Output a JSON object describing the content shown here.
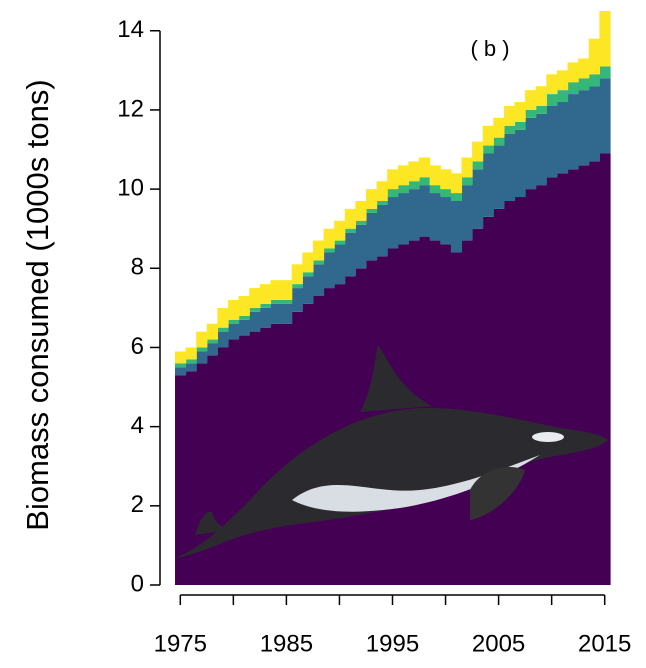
{
  "chart_data": {
    "type": "stacked-step-area",
    "y_label": "Biomass consumed (1000s tons)",
    "annotation": "( b )",
    "x": [
      1975,
      1976,
      1977,
      1978,
      1979,
      1980,
      1981,
      1982,
      1983,
      1984,
      1985,
      1986,
      1987,
      1988,
      1989,
      1990,
      1991,
      1992,
      1993,
      1994,
      1995,
      1996,
      1997,
      1998,
      1999,
      2000,
      2001,
      2002,
      2003,
      2004,
      2005,
      2006,
      2007,
      2008,
      2009,
      2010,
      2011,
      2012,
      2013,
      2014,
      2015
    ],
    "xlim": [
      1974.5,
      2015.5
    ],
    "xticks": [
      1975,
      1985,
      1995,
      2005,
      2015
    ],
    "xminor_ticks": [
      1980,
      1990,
      2000,
      2010
    ],
    "ylim": [
      0,
      14.6
    ],
    "yticks": [
      0,
      2,
      4,
      6,
      8,
      10,
      12,
      14
    ],
    "series": [
      {
        "color": "#440154",
        "values": [
          5.3,
          5.4,
          5.6,
          5.8,
          6.0,
          6.2,
          6.3,
          6.4,
          6.5,
          6.6,
          6.6,
          6.9,
          7.1,
          7.3,
          7.5,
          7.6,
          7.8,
          8.0,
          8.2,
          8.3,
          8.5,
          8.6,
          8.7,
          8.8,
          8.7,
          8.6,
          8.4,
          8.7,
          9.0,
          9.3,
          9.5,
          9.7,
          9.8,
          10.0,
          10.1,
          10.3,
          10.4,
          10.5,
          10.6,
          10.7,
          10.9
        ]
      },
      {
        "color": "#31688e",
        "values": [
          0.2,
          0.2,
          0.3,
          0.3,
          0.4,
          0.4,
          0.4,
          0.5,
          0.5,
          0.5,
          0.5,
          0.6,
          0.7,
          0.8,
          0.9,
          1.0,
          1.1,
          1.1,
          1.2,
          1.3,
          1.3,
          1.3,
          1.3,
          1.3,
          1.2,
          1.2,
          1.3,
          1.4,
          1.5,
          1.6,
          1.6,
          1.7,
          1.7,
          1.8,
          1.8,
          1.8,
          1.8,
          1.9,
          1.9,
          1.9,
          1.9
        ]
      },
      {
        "color": "#35b779",
        "values": [
          0.1,
          0.1,
          0.1,
          0.1,
          0.1,
          0.1,
          0.1,
          0.1,
          0.1,
          0.1,
          0.1,
          0.1,
          0.1,
          0.1,
          0.1,
          0.1,
          0.1,
          0.1,
          0.1,
          0.1,
          0.2,
          0.2,
          0.2,
          0.2,
          0.2,
          0.2,
          0.2,
          0.2,
          0.2,
          0.2,
          0.2,
          0.2,
          0.2,
          0.2,
          0.2,
          0.3,
          0.3,
          0.3,
          0.3,
          0.3,
          0.3
        ]
      },
      {
        "color": "#fde725",
        "values": [
          0.3,
          0.3,
          0.4,
          0.4,
          0.5,
          0.5,
          0.5,
          0.5,
          0.5,
          0.5,
          0.5,
          0.5,
          0.5,
          0.5,
          0.5,
          0.5,
          0.5,
          0.5,
          0.5,
          0.5,
          0.5,
          0.5,
          0.5,
          0.5,
          0.5,
          0.5,
          0.5,
          0.5,
          0.5,
          0.5,
          0.5,
          0.5,
          0.5,
          0.5,
          0.5,
          0.5,
          0.5,
          0.5,
          0.5,
          0.9,
          1.4
        ]
      }
    ]
  }
}
